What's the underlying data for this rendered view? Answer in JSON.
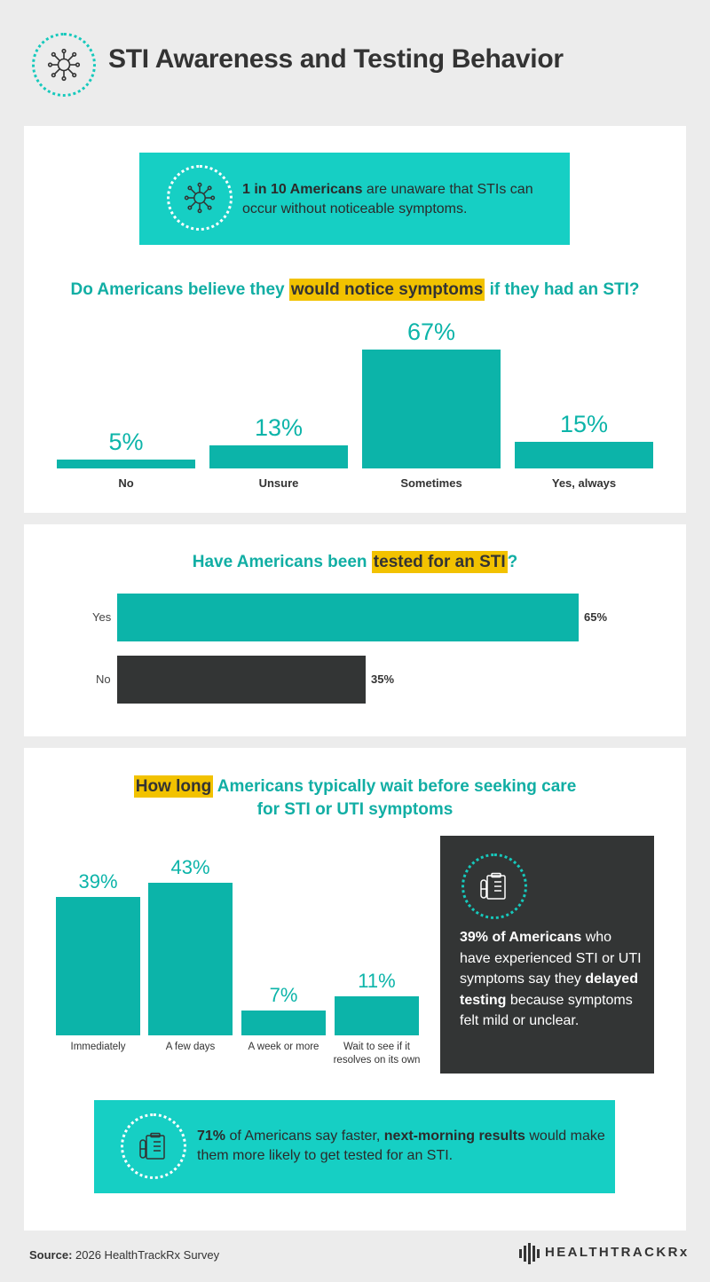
{
  "header": {
    "title": "STI Awareness and Testing Behavior",
    "icon": "virus-icon"
  },
  "callout1": {
    "bold": "1 in 10 Americans",
    "text": " are unaware that STIs can occur without noticeable symptoms.",
    "icon": "virus-icon"
  },
  "q1": {
    "pre": "Do Americans believe they ",
    "highlight": "would notice symptoms",
    "post": " if they had an STI?"
  },
  "q2": {
    "pre": "Have Americans been ",
    "highlight": "tested for an STI",
    "post": "?"
  },
  "q3": {
    "highlight": "How long",
    "post": " Americans typically wait before seeking care",
    "line2": "for STI or UTI symptoms"
  },
  "dark_callout": {
    "bold1": "39% of Americans",
    "text1": " who have experienced STI or UTI symptoms say they ",
    "bold2": "delayed testing",
    "text2": " because symptoms felt mild or unclear.",
    "icon": "test-tube-clipboard-icon"
  },
  "callout2": {
    "bold1": "71%",
    "text1": " of Americans say faster, ",
    "bold2": "next-morning results",
    "text2": " would make them more likely to get tested for an STI.",
    "icon": "test-tube-clipboard-icon"
  },
  "footer": {
    "source_label": "Source:",
    "source_text": " 2026 HealthTrackRx Survey",
    "logo_text": "HEALTHTRACKRx"
  },
  "colors": {
    "teal": "#0cb4a9",
    "teal_light": "#16cfc4",
    "highlight": "#f2c200",
    "dark": "#333535"
  },
  "chart_data": [
    {
      "type": "bar",
      "title": "Do Americans believe they would notice symptoms if they had an STI?",
      "categories": [
        "No",
        "Unsure",
        "Sometimes",
        "Yes, always"
      ],
      "values": [
        5,
        13,
        67,
        15
      ],
      "value_labels": [
        "5%",
        "13%",
        "67%",
        "15%"
      ],
      "ylim": [
        0,
        67
      ]
    },
    {
      "type": "bar",
      "orientation": "horizontal",
      "title": "Have Americans been tested for an STI?",
      "categories": [
        "Yes",
        "No"
      ],
      "values": [
        65,
        35
      ],
      "value_labels": [
        "65%",
        "35%"
      ],
      "xlim": [
        0,
        65
      ]
    },
    {
      "type": "bar",
      "title": "How long Americans typically wait before seeking care for STI or UTI symptoms",
      "categories": [
        "Immediately",
        "A few days",
        "A week or more",
        "Wait to see if it resolves on its own"
      ],
      "values": [
        39,
        43,
        7,
        11
      ],
      "value_labels": [
        "39%",
        "43%",
        "7%",
        "11%"
      ],
      "ylim": [
        0,
        43
      ]
    }
  ]
}
